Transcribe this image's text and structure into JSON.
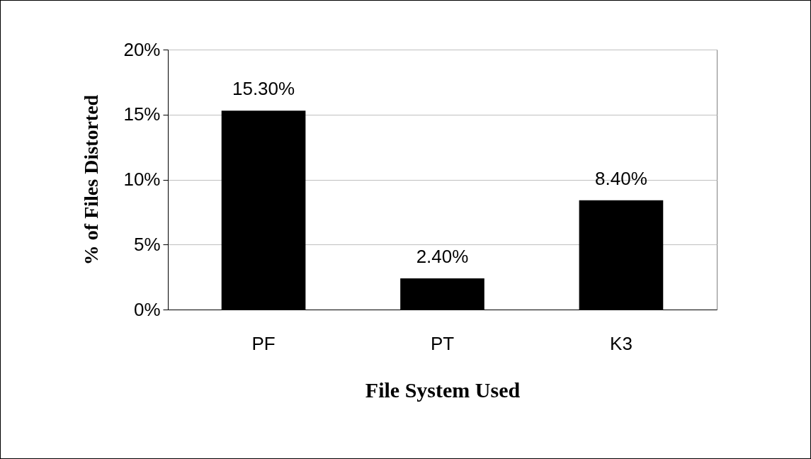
{
  "chart_data": {
    "type": "bar",
    "xlabel": "File System Used",
    "ylabel": "% of Files Distorted",
    "categories": [
      "PF",
      "PT",
      "K3"
    ],
    "values": [
      15.3,
      2.4,
      8.4
    ],
    "color": "#000000",
    "value_labels": [
      "15.30%",
      "2.40%",
      "8.40%"
    ],
    "ylim": [
      0,
      20
    ],
    "yticks": [
      {
        "value": 0,
        "label": "0%"
      },
      {
        "value": 5,
        "label": "5%"
      },
      {
        "value": 10,
        "label": "10%"
      },
      {
        "value": 15,
        "label": "15%"
      },
      {
        "value": 20,
        "label": "20%"
      }
    ],
    "grid": "y"
  }
}
